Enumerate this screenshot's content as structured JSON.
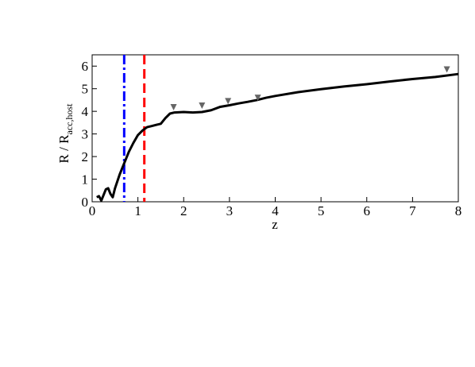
{
  "chart_data": {
    "type": "line",
    "x_label": "z",
    "y_label": {
      "main": "R / R",
      "sub": "acc,host"
    },
    "xlim": [
      0,
      8
    ],
    "ylim": [
      0,
      6.5
    ],
    "xticks": [
      0,
      1,
      2,
      3,
      4,
      5,
      6,
      7,
      8
    ],
    "yticks": [
      0,
      1,
      2,
      3,
      4,
      5,
      6
    ],
    "series": [
      {
        "color": "#000000",
        "x": [
          0.1,
          0.15,
          0.2,
          0.25,
          0.3,
          0.35,
          0.4,
          0.45,
          0.5,
          0.6,
          0.7,
          0.8,
          0.9,
          1.0,
          1.1,
          1.2,
          1.3,
          1.4,
          1.5,
          1.6,
          1.7,
          1.8,
          2.0,
          2.2,
          2.4,
          2.6,
          2.8,
          3.0,
          3.2,
          3.4,
          3.6,
          3.8,
          4.0,
          4.5,
          5.0,
          5.5,
          6.0,
          6.5,
          7.0,
          7.5,
          8.0
        ],
        "values": [
          0.2,
          0.25,
          0.05,
          0.3,
          0.55,
          0.6,
          0.35,
          0.2,
          0.6,
          1.2,
          1.7,
          2.2,
          2.6,
          2.95,
          3.15,
          3.3,
          3.35,
          3.4,
          3.45,
          3.7,
          3.9,
          3.95,
          3.97,
          3.95,
          3.97,
          4.05,
          4.2,
          4.27,
          4.35,
          4.42,
          4.5,
          4.6,
          4.68,
          4.85,
          4.98,
          5.1,
          5.2,
          5.32,
          5.43,
          5.52,
          5.65
        ]
      }
    ],
    "upper_limits": {
      "color": "#666666",
      "x": [
        1.78,
        2.4,
        2.97,
        3.62,
        7.75
      ],
      "values": [
        4.18,
        4.25,
        4.45,
        4.6,
        5.85
      ]
    },
    "vlines": [
      {
        "x": 0.7,
        "color": "#0000ff",
        "style": "dashdot"
      },
      {
        "x": 1.14,
        "color": "#ff0000",
        "style": "dashed"
      }
    ]
  }
}
